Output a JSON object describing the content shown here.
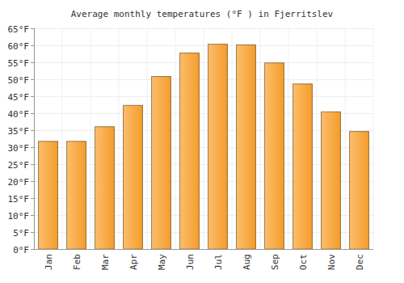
{
  "chart_data": {
    "type": "bar",
    "title": "Average monthly temperatures (°F ) in Fjerritslev",
    "categories": [
      "Jan",
      "Feb",
      "Mar",
      "Apr",
      "May",
      "Jun",
      "Jul",
      "Aug",
      "Sep",
      "Oct",
      "Nov",
      "Dec"
    ],
    "values": [
      31.7,
      31.7,
      36,
      42.3,
      50.8,
      57.7,
      60.3,
      60.1,
      54.8,
      48.6,
      40.4,
      34.6
    ],
    "color": "#fba83a",
    "ylim": [
      0,
      65
    ],
    "yticks": [
      {
        "value": 0,
        "label": "0°F"
      },
      {
        "value": 5,
        "label": "5°F"
      },
      {
        "value": 10,
        "label": "10°F"
      },
      {
        "value": 15,
        "label": "15°F"
      },
      {
        "value": 20,
        "label": "20°F"
      },
      {
        "value": 25,
        "label": "25°F"
      },
      {
        "value": 30,
        "label": "30°F"
      },
      {
        "value": 35,
        "label": "35°F"
      },
      {
        "value": 40,
        "label": "40°F"
      },
      {
        "value": 45,
        "label": "45°F"
      },
      {
        "value": 50,
        "label": "50°F"
      },
      {
        "value": 55,
        "label": "55°F"
      },
      {
        "value": 60,
        "label": "60°F"
      },
      {
        "value": 65,
        "label": "65°F"
      }
    ],
    "grid": true
  }
}
